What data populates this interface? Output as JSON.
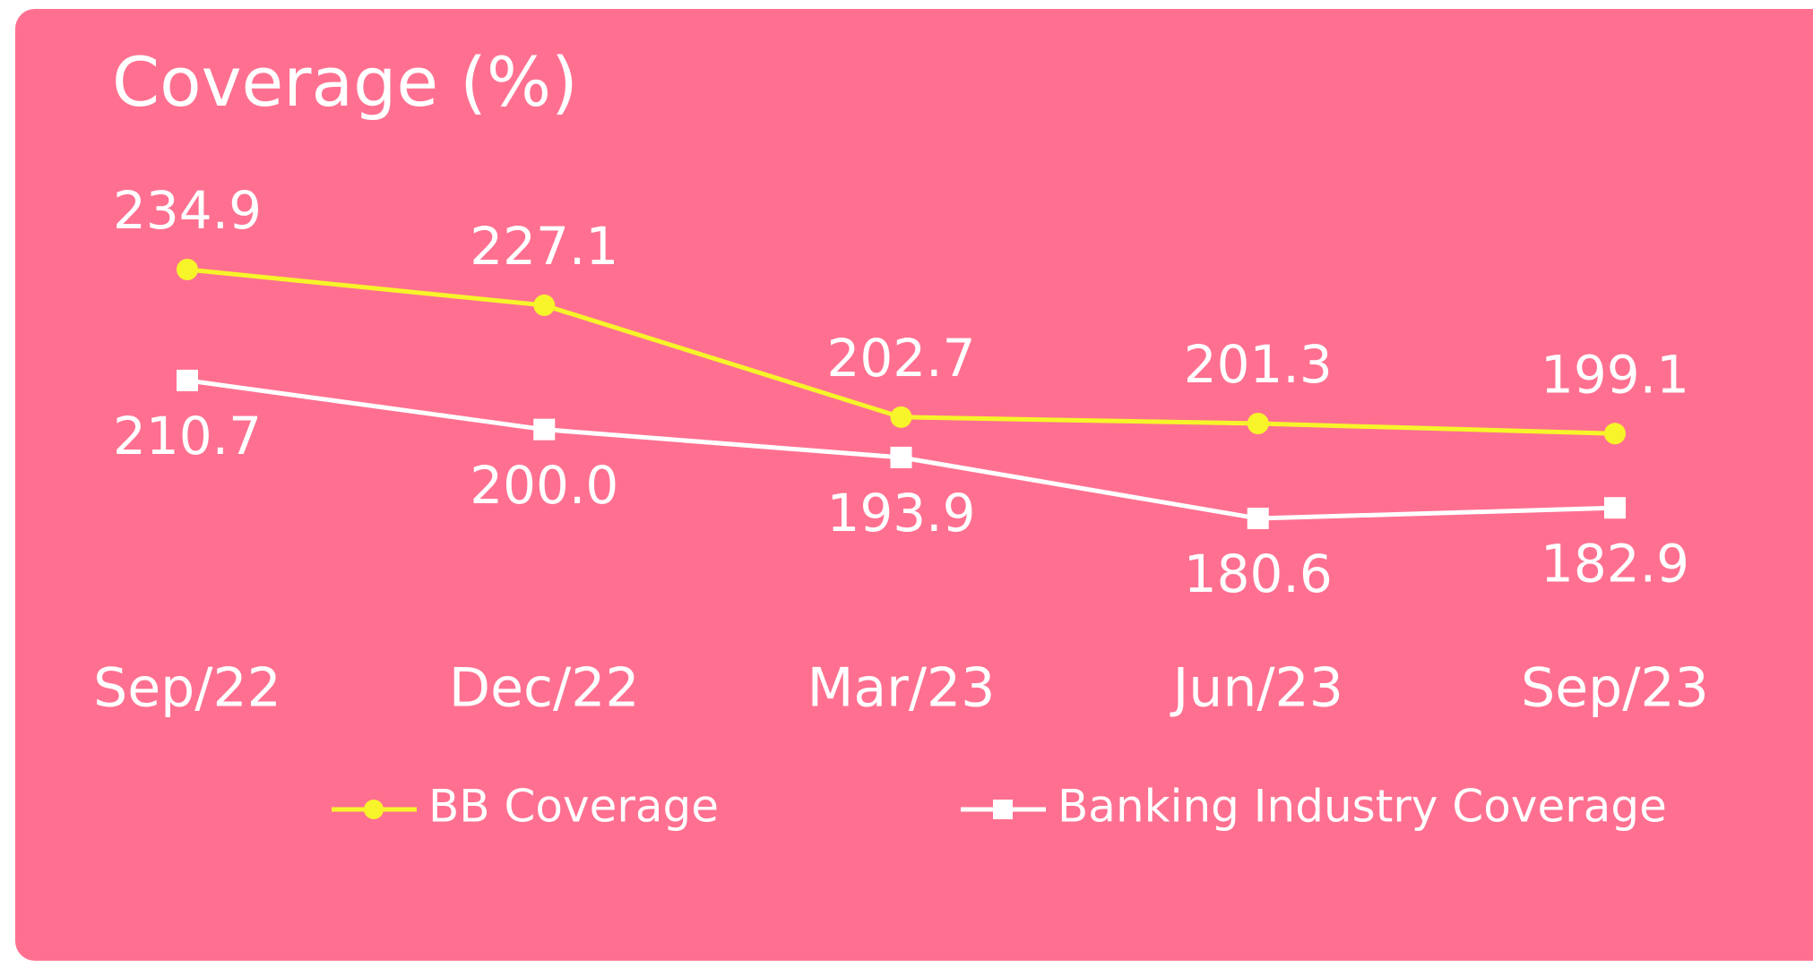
{
  "chart_data": {
    "type": "line",
    "title": "Coverage (%)",
    "categories": [
      "Sep/22",
      "Dec/22",
      "Mar/23",
      "Jun/23",
      "Sep/23"
    ],
    "series": [
      {
        "name": "BB Coverage",
        "color": "#f7f42a",
        "marker": "circle",
        "values": [
          234.9,
          227.1,
          202.7,
          201.3,
          199.1
        ]
      },
      {
        "name": "Banking Industry Coverage",
        "color": "#ffffff",
        "marker": "square",
        "values": [
          210.7,
          200.0,
          193.9,
          180.6,
          182.9
        ],
        "value_labels": [
          "210.7",
          "200.0",
          "193.9",
          "180.6",
          "182.9"
        ]
      }
    ],
    "background": "#ff7090"
  }
}
